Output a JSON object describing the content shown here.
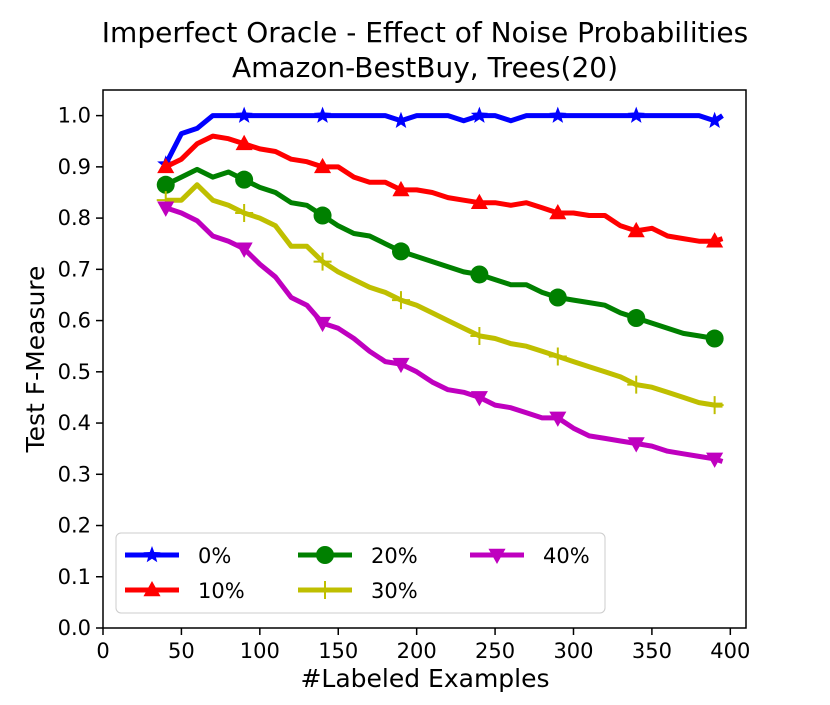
{
  "chart_data": {
    "type": "line",
    "title": "Imperfect Oracle - Effect of Noise Probabilities",
    "subtitle": "Amazon-BestBuy, Trees(20)",
    "xlabel": "#Labeled Examples",
    "ylabel": "Test F-Measure",
    "xlim": [
      0,
      410
    ],
    "ylim": [
      0.0,
      1.05
    ],
    "xticks": [
      0,
      50,
      100,
      150,
      200,
      250,
      300,
      350,
      400
    ],
    "yticks": [
      0.0,
      0.1,
      0.2,
      0.3,
      0.4,
      0.5,
      0.6,
      0.7,
      0.8,
      0.9,
      1.0
    ],
    "xtick_labels": [
      "0",
      "50",
      "100",
      "150",
      "200",
      "250",
      "300",
      "350",
      "400"
    ],
    "ytick_labels": [
      "0.0",
      "0.1",
      "0.2",
      "0.3",
      "0.4",
      "0.5",
      "0.6",
      "0.7",
      "0.8",
      "0.9",
      "1.0"
    ],
    "legend_position": "lower-left",
    "x": [
      40,
      50,
      60,
      70,
      80,
      90,
      100,
      110,
      120,
      130,
      140,
      150,
      160,
      170,
      180,
      190,
      200,
      210,
      220,
      230,
      240,
      250,
      260,
      270,
      280,
      290,
      300,
      310,
      320,
      330,
      340,
      350,
      360,
      370,
      380,
      390,
      395
    ],
    "marker_x": [
      40,
      90,
      140,
      190,
      240,
      290,
      340,
      390
    ],
    "series": [
      {
        "name": "0%",
        "color": "#0000ff",
        "marker": "star",
        "values": [
          0.905,
          0.965,
          0.975,
          1.0,
          1.0,
          1.0,
          1.0,
          1.0,
          1.0,
          1.0,
          1.0,
          1.0,
          1.0,
          1.0,
          1.0,
          0.99,
          1.0,
          1.0,
          1.0,
          0.99,
          1.0,
          1.0,
          0.99,
          1.0,
          1.0,
          1.0,
          1.0,
          1.0,
          1.0,
          1.0,
          1.0,
          1.0,
          1.0,
          1.0,
          1.0,
          0.99,
          1.0
        ]
      },
      {
        "name": "10%",
        "color": "#ff0000",
        "marker": "triangle-up",
        "values": [
          0.9,
          0.915,
          0.945,
          0.96,
          0.955,
          0.945,
          0.935,
          0.93,
          0.915,
          0.91,
          0.9,
          0.9,
          0.88,
          0.87,
          0.87,
          0.855,
          0.855,
          0.85,
          0.84,
          0.835,
          0.83,
          0.83,
          0.825,
          0.83,
          0.82,
          0.81,
          0.81,
          0.805,
          0.805,
          0.785,
          0.775,
          0.78,
          0.765,
          0.76,
          0.755,
          0.755,
          0.76
        ]
      },
      {
        "name": "20%",
        "color": "#008000",
        "marker": "circle",
        "values": [
          0.865,
          0.88,
          0.895,
          0.88,
          0.89,
          0.875,
          0.86,
          0.85,
          0.83,
          0.825,
          0.805,
          0.785,
          0.77,
          0.765,
          0.75,
          0.735,
          0.725,
          0.715,
          0.705,
          0.695,
          0.69,
          0.68,
          0.67,
          0.67,
          0.655,
          0.645,
          0.64,
          0.635,
          0.63,
          0.615,
          0.605,
          0.595,
          0.585,
          0.575,
          0.57,
          0.565,
          0.565
        ]
      },
      {
        "name": "30%",
        "color": "#bfbf00",
        "marker": "plus",
        "values": [
          0.835,
          0.835,
          0.865,
          0.835,
          0.825,
          0.81,
          0.8,
          0.785,
          0.745,
          0.745,
          0.715,
          0.695,
          0.68,
          0.665,
          0.655,
          0.64,
          0.63,
          0.615,
          0.6,
          0.585,
          0.57,
          0.565,
          0.555,
          0.55,
          0.54,
          0.53,
          0.52,
          0.51,
          0.5,
          0.49,
          0.475,
          0.47,
          0.46,
          0.45,
          0.44,
          0.435,
          0.435
        ]
      },
      {
        "name": "40%",
        "color": "#bf00bf",
        "marker": "triangle-down",
        "values": [
          0.82,
          0.81,
          0.795,
          0.765,
          0.755,
          0.74,
          0.71,
          0.685,
          0.645,
          0.63,
          0.595,
          0.585,
          0.565,
          0.54,
          0.52,
          0.515,
          0.5,
          0.48,
          0.465,
          0.46,
          0.45,
          0.435,
          0.43,
          0.42,
          0.41,
          0.41,
          0.39,
          0.375,
          0.37,
          0.365,
          0.36,
          0.355,
          0.345,
          0.34,
          0.335,
          0.33,
          0.325
        ]
      }
    ]
  }
}
